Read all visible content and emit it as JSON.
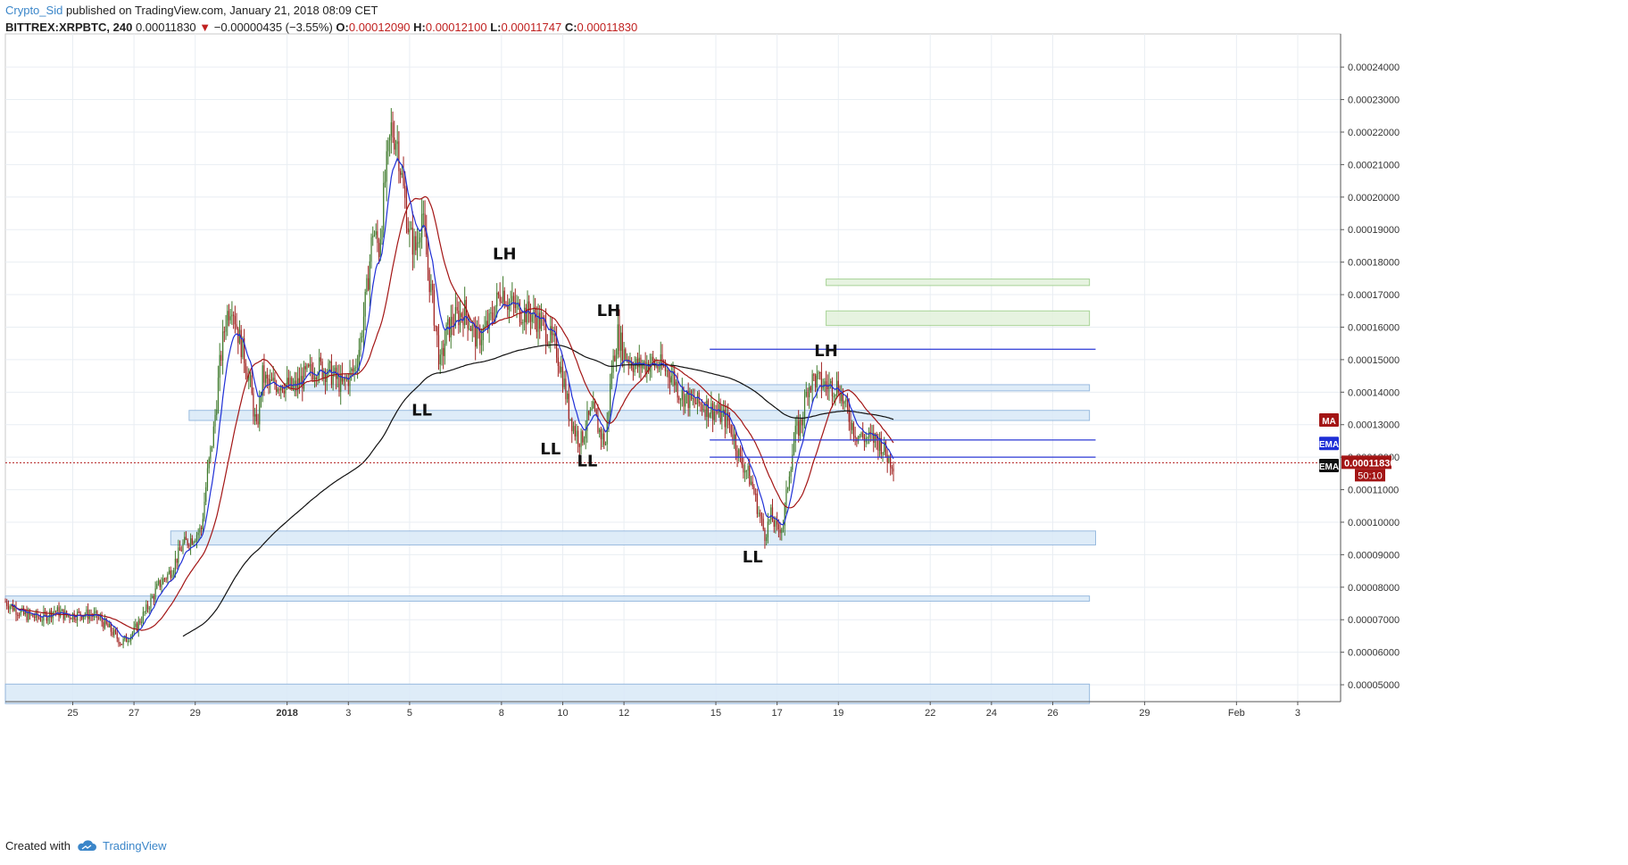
{
  "header": {
    "line1": {
      "author": "Crypto_Sid",
      "published_text": "published on TradingView.com, January 21, 2018 08:09 CET"
    },
    "line2": {
      "symbol": "BITTREX:XRPBTC, 240",
      "last": "0.00011830",
      "arrow": "▼",
      "change": "−0.00000435 (−3.55%)",
      "open_label": "O:",
      "open": "0.00012090",
      "high_label": "H:",
      "high": "0.00012100",
      "low_label": "L:",
      "low": "0.00011747",
      "close_label": "C:",
      "close": "0.00011830"
    }
  },
  "footer": {
    "created_with": "Created with",
    "brand": "TradingView",
    "logo_icon": "tradingview-cloud-icon"
  },
  "colors": {
    "up": "#3f7a2c",
    "down": "#a0201e",
    "ema_fast": "#1f2fd6",
    "ma": "#a31515",
    "ema_slow": "#111111",
    "zone_blue_fill": "#dbeaf8",
    "zone_blue_stroke": "#8fb4dc",
    "zone_green_fill": "#e4f2dd",
    "zone_green_stroke": "#9fcf8c",
    "hline": "#2c39d6",
    "price_line": "#b21f1f"
  },
  "chart_data": {
    "type": "candlestick",
    "symbol": "BITTREX:XRPBTC",
    "interval": "240",
    "ylim": [
      4.48e-05,
      0.0002502
    ],
    "yticks": [
      "0.00005000",
      "0.00006000",
      "0.00007000",
      "0.00008000",
      "0.00009000",
      "0.00010000",
      "0.00011000",
      "0.00012000",
      "0.00013000",
      "0.00014000",
      "0.00015000",
      "0.00016000",
      "0.00017000",
      "0.00018000",
      "0.00019000",
      "0.00020000",
      "0.00021000",
      "0.00022000",
      "0.00023000",
      "0.00024000"
    ],
    "xlim": [
      0,
      218
    ],
    "xticks": [
      {
        "label": "25",
        "x": 11
      },
      {
        "label": "27",
        "x": 21
      },
      {
        "label": "29",
        "x": 31
      },
      {
        "label": "2018",
        "x": 46
      },
      {
        "label": "3",
        "x": 56
      },
      {
        "label": "5",
        "x": 66
      },
      {
        "label": "8",
        "x": 81
      },
      {
        "label": "10",
        "x": 91
      },
      {
        "label": "12",
        "x": 101
      },
      {
        "label": "15",
        "x": 116
      },
      {
        "label": "17",
        "x": 126
      },
      {
        "label": "19",
        "x": 136
      },
      {
        "label": "22",
        "x": 151
      },
      {
        "label": "24",
        "x": 161
      },
      {
        "label": "26",
        "x": 171
      },
      {
        "label": "29",
        "x": 186
      },
      {
        "label": "Feb",
        "x": 201
      },
      {
        "label": "3",
        "x": 211
      }
    ],
    "close_price": 0.0001183,
    "countdown": "50:10",
    "ohlc_anchors": [
      [
        0,
        7.55e-05
      ],
      [
        3,
        7.15e-05
      ],
      [
        6,
        7.05e-05
      ],
      [
        8,
        7.28e-05
      ],
      [
        10,
        7.13e-05
      ],
      [
        13,
        7.18e-05
      ],
      [
        15,
        7.08e-05
      ],
      [
        17,
        6.72e-05
      ],
      [
        19,
        6.28e-05
      ],
      [
        21,
        6.65e-05
      ],
      [
        23,
        7.3e-05
      ],
      [
        25,
        8.05e-05
      ],
      [
        27,
        8.5e-05
      ],
      [
        29,
        9.3e-05
      ],
      [
        31,
        9.6e-05
      ],
      [
        32,
        9.8e-05
      ],
      [
        33,
        0.000115
      ],
      [
        34,
        0.000128
      ],
      [
        35,
        0.000148
      ],
      [
        36,
        0.000163
      ],
      [
        37,
        0.000168
      ],
      [
        38,
        0.000158
      ],
      [
        39,
        0.000151
      ],
      [
        40,
        0.000142
      ],
      [
        41,
        0.000128
      ],
      [
        42,
        0.000145
      ],
      [
        43,
        0.000142
      ],
      [
        45,
        0.000143
      ],
      [
        47,
        0.000141
      ],
      [
        49,
        0.000145
      ],
      [
        51,
        0.000148
      ],
      [
        53,
        0.000146
      ],
      [
        55,
        0.000142
      ],
      [
        57,
        0.000147
      ],
      [
        58,
        0.000156
      ],
      [
        59,
        0.000171
      ],
      [
        60,
        0.00019
      ],
      [
        61,
        0.000184
      ],
      [
        62,
        0.000205
      ],
      [
        63,
        0.000221
      ],
      [
        64,
        0.000217
      ],
      [
        65,
        0.000202
      ],
      [
        66,
        0.000188
      ],
      [
        67,
        0.000184
      ],
      [
        68,
        0.000195
      ],
      [
        69,
        0.000178
      ],
      [
        70,
        0.000164
      ],
      [
        71,
        0.000148
      ],
      [
        72,
        0.000158
      ],
      [
        73,
        0.000162
      ],
      [
        75,
        0.000165
      ],
      [
        77,
        0.000156
      ],
      [
        79,
        0.000161
      ],
      [
        81,
        0.000172
      ],
      [
        82,
        0.000168
      ],
      [
        84,
        0.000165
      ],
      [
        86,
        0.000164
      ],
      [
        88,
        0.00016
      ],
      [
        90,
        0.000153
      ],
      [
        91,
        0.000145
      ],
      [
        92,
        0.000134
      ],
      [
        93,
        0.000128
      ],
      [
        94,
        0.000125
      ],
      [
        95,
        0.000131
      ],
      [
        96,
        0.000134
      ],
      [
        97,
        0.000128
      ],
      [
        98,
        0.000124
      ],
      [
        99,
        0.000147
      ],
      [
        100,
        0.000158
      ],
      [
        101,
        0.000152
      ],
      [
        103,
        0.000148
      ],
      [
        105,
        0.000149
      ],
      [
        107,
        0.000148
      ],
      [
        109,
        0.000145
      ],
      [
        110,
        0.00014
      ],
      [
        112,
        0.000137
      ],
      [
        114,
        0.000136
      ],
      [
        116,
        0.000134
      ],
      [
        118,
        0.000131
      ],
      [
        119,
        0.000126
      ],
      [
        120,
        0.000119
      ],
      [
        121,
        0.000116
      ],
      [
        122,
        0.000111
      ],
      [
        123,
        0.000103
      ],
      [
        124,
        9.62e-05
      ],
      [
        125,
        0.000102
      ],
      [
        126,
        9.75e-05
      ],
      [
        127,
        9.95e-05
      ],
      [
        128,
        0.000116
      ],
      [
        129,
        0.000127
      ],
      [
        130,
        0.000131
      ],
      [
        131,
        0.000142
      ],
      [
        132,
        0.000144
      ],
      [
        134,
        0.000142
      ],
      [
        136,
        0.000142
      ],
      [
        137,
        0.000136
      ],
      [
        138,
        0.000131
      ],
      [
        139,
        0.000127
      ],
      [
        140,
        0.000126
      ],
      [
        142,
        0.0001255
      ],
      [
        143,
        0.000124
      ],
      [
        144,
        0.00012
      ],
      [
        145,
        0.0001183
      ]
    ],
    "indicators": [
      {
        "name": "EMA",
        "badge": "EMA",
        "color": "#1f2fd6",
        "period_hint": "fast"
      },
      {
        "name": "MA",
        "badge": "MA",
        "color": "#a31515",
        "period_hint": "medium"
      },
      {
        "name": "EMA",
        "badge": "EMA",
        "color": "#111111",
        "period_hint": "slow"
      }
    ],
    "badge_prices": {
      "MA": 0.0001313,
      "EMA_fast": 0.0001241,
      "EMA_slow": 0.0001173
    },
    "annotations": [
      {
        "text": "LL",
        "x": 68,
        "y": 0.0001328
      },
      {
        "text": "LH",
        "x": 81.5,
        "y": 0.0001808
      },
      {
        "text": "LL",
        "x": 89,
        "y": 0.0001208
      },
      {
        "text": "LL",
        "x": 95,
        "y": 0.0001172
      },
      {
        "text": "LH",
        "x": 98.5,
        "y": 0.0001634
      },
      {
        "text": "LH",
        "x": 134,
        "y": 0.0001511
      },
      {
        "text": "LL",
        "x": 122,
        "y": 8.76e-05
      }
    ],
    "zones": [
      {
        "color": "blue",
        "x1": -1,
        "x2": 177,
        "y1": 5.02e-05,
        "y2": 4.42e-05
      },
      {
        "color": "blue",
        "x1": -1,
        "x2": 177,
        "y1": 7.73e-05,
        "y2": 7.57e-05
      },
      {
        "color": "blue",
        "x1": 27,
        "x2": 178,
        "y1": 9.73e-05,
        "y2": 9.3e-05
      },
      {
        "color": "blue",
        "x1": 30,
        "x2": 177,
        "y1": 0.0001344,
        "y2": 0.0001313
      },
      {
        "color": "blue",
        "x1": 47,
        "x2": 177,
        "y1": 0.0001423,
        "y2": 0.0001404
      },
      {
        "color": "green",
        "x1": 134,
        "x2": 177,
        "y1": 0.000165,
        "y2": 0.0001605
      },
      {
        "color": "green",
        "x1": 134,
        "x2": 177,
        "y1": 0.0001748,
        "y2": 0.0001728
      }
    ],
    "hlines": [
      {
        "x1": 115,
        "x2": 178,
        "y": 0.0001532
      },
      {
        "x1": 115,
        "x2": 178,
        "y": 0.0001253
      },
      {
        "x1": 115,
        "x2": 178,
        "y": 0.00012
      }
    ]
  }
}
